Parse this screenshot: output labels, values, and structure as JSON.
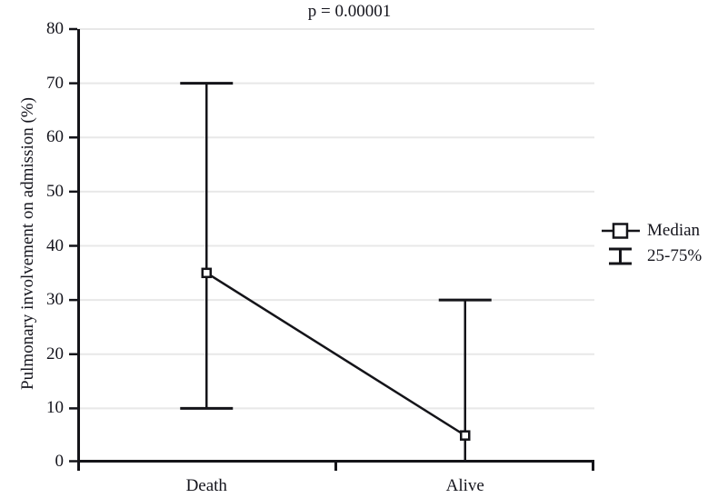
{
  "title": "p = 0.00001",
  "y_axis": {
    "label": "Pulmonary involvement on admission (%)",
    "min": 0,
    "max": 80,
    "tick_step": 10,
    "ticks": [
      0,
      10,
      20,
      30,
      40,
      50,
      60,
      70,
      80
    ]
  },
  "x_axis": {
    "categories": [
      "Death",
      "Alive"
    ]
  },
  "legend": {
    "items": [
      {
        "symbol": "median-square-marker",
        "label": "Median"
      },
      {
        "symbol": "iqr-whisker",
        "label": "25-75%"
      }
    ]
  },
  "chart_data": {
    "type": "line",
    "categories": [
      "Death",
      "Alive"
    ],
    "series": [
      {
        "name": "Median",
        "values": [
          35,
          5
        ]
      }
    ],
    "error_bars": {
      "name": "25-75%",
      "meaning": "interquartile range",
      "low": [
        10,
        0
      ],
      "high": [
        70,
        30
      ]
    },
    "title": "p = 0.00001",
    "xlabel": "",
    "ylabel": "Pulmonary involvement on admission (%)",
    "ylim": [
      0,
      80
    ],
    "ytick_step": 10,
    "grid": true,
    "legend_position": "right",
    "marker": "open-square"
  },
  "colors": {
    "stroke": "#141419",
    "grid": "#e8e8e8",
    "text": "#15151d",
    "background": "#ffffff",
    "marker_fill": "#ffffff"
  }
}
